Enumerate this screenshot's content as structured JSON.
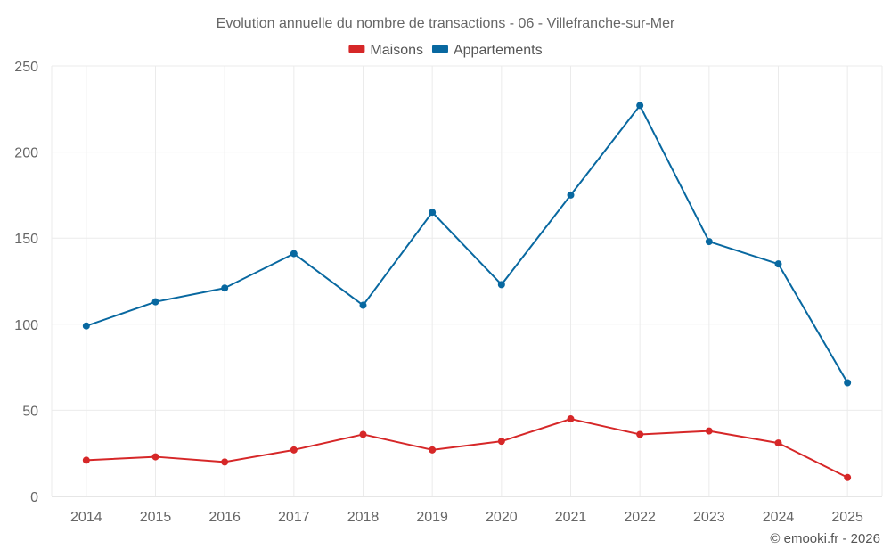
{
  "chart_data": {
    "type": "line",
    "title": "Evolution annuelle du nombre de transactions - 06 - Villefranche-sur-Mer",
    "categories": [
      "2014",
      "2015",
      "2016",
      "2017",
      "2018",
      "2019",
      "2020",
      "2021",
      "2022",
      "2023",
      "2024",
      "2025"
    ],
    "series": [
      {
        "name": "Maisons",
        "color": "#d62728",
        "values": [
          21,
          23,
          20,
          27,
          36,
          27,
          32,
          45,
          36,
          38,
          31,
          11
        ]
      },
      {
        "name": "Appartements",
        "color": "#0868a0",
        "values": [
          99,
          113,
          121,
          141,
          111,
          165,
          123,
          175,
          227,
          148,
          135,
          66
        ]
      }
    ],
    "y_ticks": [
      0,
      50,
      100,
      150,
      200,
      250
    ],
    "ylim": [
      0,
      250
    ],
    "xlabel": "",
    "ylabel": "",
    "grid": true,
    "legend_position": "top-center"
  },
  "credit": "© emooki.fr - 2026"
}
